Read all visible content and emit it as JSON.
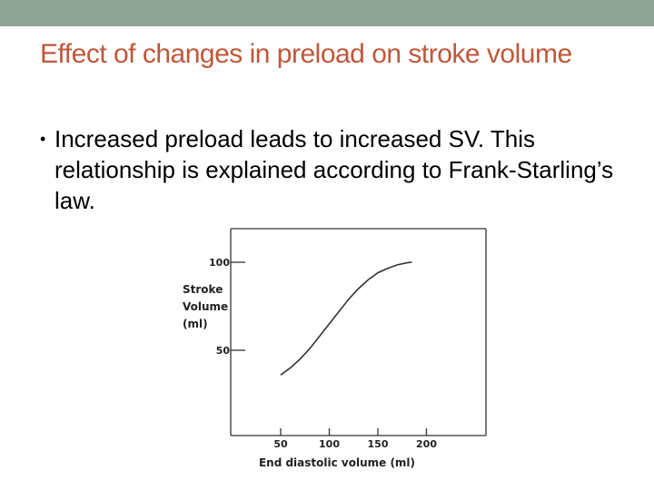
{
  "theme": {
    "top_bar_color": "#8fa397",
    "title_color": "#c0573a",
    "text_color": "#000000"
  },
  "slide": {
    "title": "Effect of changes in preload on stroke volume",
    "bullet_icon": "bullet-dot",
    "bullet": "Increased preload leads to increased SV. This relationship is explained according to Frank-Starling’s law."
  },
  "chart_data": {
    "type": "line",
    "xlabel": "End diastolic volume (ml)",
    "ylabel_lines": [
      "Stroke",
      "Volume",
      "(ml)"
    ],
    "x_ticks": [
      50,
      100,
      150,
      200
    ],
    "y_ticks": [
      50,
      100
    ],
    "series": [
      {
        "x": [
          50,
          60,
          70,
          80,
          90,
          100,
          110,
          120,
          130,
          140,
          150,
          160,
          170,
          180,
          185
        ],
        "y": [
          36,
          40,
          45,
          51,
          58,
          65,
          72,
          79,
          85,
          90,
          94,
          96.5,
          98.5,
          99.7,
          100
        ]
      }
    ],
    "legend": "none",
    "grid": false
  }
}
